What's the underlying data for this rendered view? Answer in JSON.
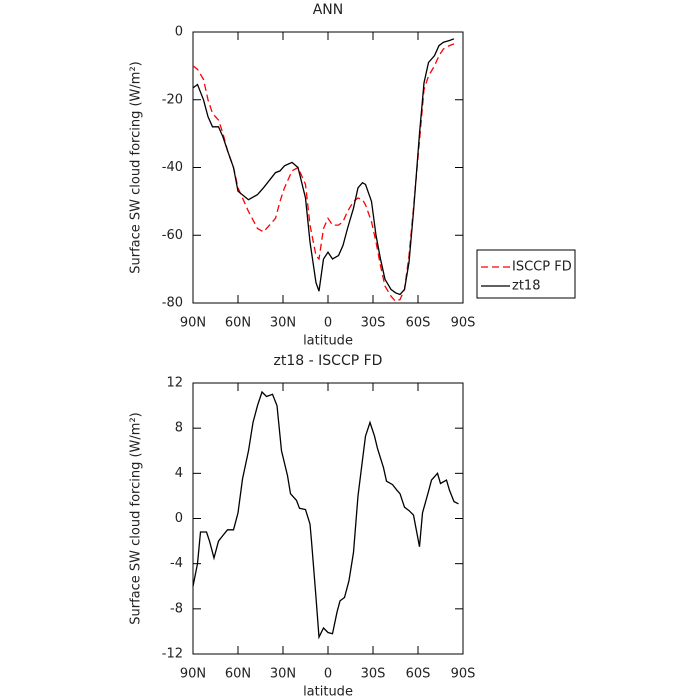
{
  "chart_data": [
    {
      "type": "line",
      "title": "ANN",
      "xlabel": "latitude",
      "ylabel": "Surface SW cloud forcing (W/m²)",
      "x": [
        90,
        87,
        83,
        80,
        77,
        73,
        70,
        67,
        63,
        60,
        53,
        47,
        43,
        35,
        32,
        29,
        24,
        20,
        15,
        12,
        8,
        6,
        3,
        0,
        -3,
        -7,
        -10,
        -13,
        -17,
        -20,
        -23,
        -25,
        -29,
        -32,
        -35,
        -38,
        -42,
        -45,
        -48,
        -51,
        -54,
        -57,
        -61,
        -64,
        -67,
        -71,
        -74,
        -77,
        -81,
        -84
      ],
      "series": [
        {
          "name": "ISCCP FD",
          "color": "#ff0000",
          "linestyle": "dashed",
          "values": [
            -10,
            -11,
            -14,
            -20,
            -24,
            -26,
            -30,
            -35,
            -40,
            -46,
            -53,
            -58,
            -59,
            -55,
            -50,
            -46,
            -41,
            -40,
            -45,
            -57,
            -66,
            -67,
            -58,
            -55,
            -57,
            -57,
            -56,
            -53,
            -50,
            -49,
            -49.5,
            -51,
            -56,
            -62,
            -69,
            -75,
            -78,
            -79.5,
            -79,
            -76,
            -66,
            -52,
            -32,
            -17,
            -13,
            -10,
            -7,
            -5,
            -4,
            -3.5
          ]
        },
        {
          "name": "zt18",
          "color": "#000000",
          "linestyle": "solid",
          "values": [
            -16.5,
            -15.5,
            -20,
            -25,
            -28,
            -28,
            -31,
            -35,
            -40,
            -47,
            -49.5,
            -48,
            -46,
            -41.5,
            -41,
            -39.5,
            -38.5,
            -40,
            -49,
            -62,
            -74,
            -76.5,
            -67,
            -65,
            -67,
            -66,
            -63,
            -58,
            -52,
            -46,
            -44.5,
            -45,
            -50,
            -60,
            -67,
            -73,
            -76,
            -77,
            -77.5,
            -76,
            -68,
            -53,
            -30,
            -15,
            -9,
            -7,
            -4,
            -3,
            -2.5,
            -2
          ]
        }
      ],
      "xlim": [
        90,
        -90
      ],
      "xticks": [
        {
          "value": 90,
          "label": "90N"
        },
        {
          "value": 60,
          "label": "60N"
        },
        {
          "value": 30,
          "label": "30N"
        },
        0,
        {
          "value": -30,
          "label": "30S"
        },
        {
          "value": -60,
          "label": "60S"
        },
        {
          "value": -90,
          "label": "90S"
        }
      ],
      "ylim": [
        -80,
        0
      ],
      "yticks": [
        0,
        -20,
        -40,
        -60,
        -80
      ],
      "legend": "right"
    },
    {
      "type": "line",
      "title": "zt18 - ISCCP FD",
      "xlabel": "latitude",
      "ylabel": "Surface SW cloud forcing (W/m²)",
      "x": [
        90,
        87,
        85,
        81,
        79,
        76,
        73,
        70,
        67,
        63,
        60,
        57,
        53,
        50,
        47,
        44,
        41,
        37,
        34,
        31,
        27,
        25,
        21,
        19,
        15,
        12,
        11,
        8,
        6,
        3,
        0,
        -3,
        -6,
        -8,
        -11,
        -14,
        -17,
        -20,
        -23,
        -25,
        -28,
        -31,
        -33,
        -37,
        -39,
        -43,
        -46,
        -48,
        -51,
        -54,
        -57,
        -61,
        -63,
        -67,
        -69,
        -73,
        -75,
        -79,
        -81,
        -84,
        -87
      ],
      "values": [
        -6,
        -4,
        -1.2,
        -1.2,
        -2,
        -3.5,
        -2,
        -1.5,
        -1,
        -1,
        0.5,
        3.5,
        6,
        8.5,
        10,
        11.2,
        10.8,
        11,
        10,
        6,
        3.8,
        2.2,
        1.6,
        0.9,
        0.8,
        -0.5,
        -2,
        -7,
        -10.5,
        -9.7,
        -10.1,
        -10.2,
        -8.3,
        -7.3,
        -7,
        -5.5,
        -3,
        2,
        5.2,
        7.3,
        8.5,
        7.3,
        6.2,
        4.5,
        3.3,
        3,
        2.5,
        2.2,
        1,
        0.7,
        0.3,
        -2.5,
        0.5,
        2.4,
        3.4,
        4,
        3.1,
        3.4,
        2.5,
        1.5,
        1.3
      ],
      "color": "#000000",
      "xlim": [
        90,
        -90
      ],
      "xticks": [
        {
          "value": 90,
          "label": "90N"
        },
        {
          "value": 60,
          "label": "60N"
        },
        {
          "value": 30,
          "label": "30N"
        },
        0,
        {
          "value": -30,
          "label": "30S"
        },
        {
          "value": -60,
          "label": "60S"
        },
        {
          "value": -90,
          "label": "90S"
        }
      ],
      "ylim": [
        -12,
        12
      ],
      "yticks": [
        -12,
        -8,
        -4,
        0,
        4,
        8,
        12
      ]
    }
  ]
}
